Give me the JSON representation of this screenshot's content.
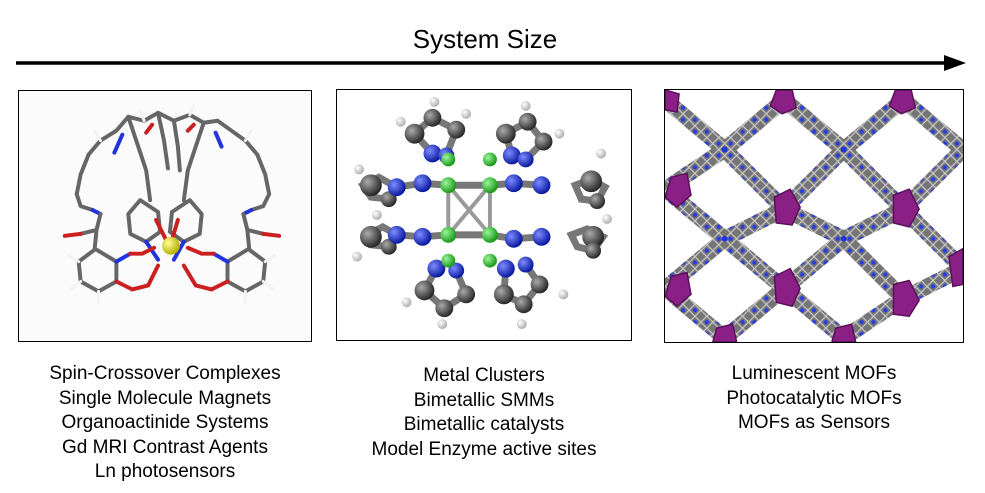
{
  "header": {
    "title": "System Size"
  },
  "panels": [
    {
      "image_name": "macrocycle-complex-image",
      "captions": [
        "Spin-Crossover Complexes",
        "Single Molecule Magnets",
        "Organoactinide Systems",
        "Gd MRI Contrast Agents",
        "Ln photosensors"
      ]
    },
    {
      "image_name": "metal-cluster-image",
      "captions": [
        "Metal Clusters",
        "Bimetallic SMMs",
        "Bimetallic catalysts",
        "Model Enzyme active sites"
      ]
    },
    {
      "image_name": "mof-framework-image",
      "captions": [
        "Luminescent MOFs",
        "Photocatalytic MOFs",
        "MOFs as Sensors"
      ]
    }
  ],
  "colors": {
    "carbon": "#555555",
    "nitrogen": "#1f35e0",
    "oxygen": "#d42020",
    "hydrogen": "#e8e8e8",
    "metal_center": "#e5e02a",
    "metal_cluster": "#2ec42e",
    "mof_node": "#8a1f86"
  }
}
